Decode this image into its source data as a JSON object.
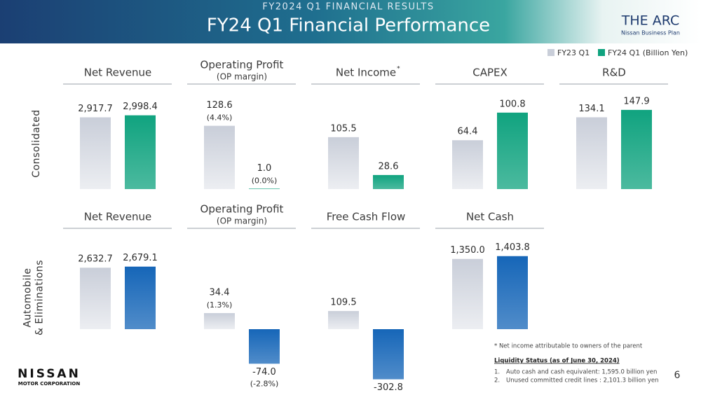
{
  "header": {
    "subtitle": "FY2024 Q1 FINANCIAL RESULTS",
    "title": "FY24 Q1 Financial Performance",
    "logo": "THE ARC",
    "logo_sub": "Nissan Business Plan"
  },
  "legend": [
    {
      "name": "FY23 Q1",
      "color": "#c9ced9"
    },
    {
      "name": "FY24 Q1 (Billion Yen)",
      "color": "#10a37f"
    }
  ],
  "rows": [
    {
      "label_lines": [
        "Consolidated"
      ]
    },
    {
      "label_lines": [
        "Automobile",
        "& Eliminations"
      ]
    }
  ],
  "chart_data": [
    {
      "type": "bar",
      "title": "Net Revenue",
      "values": [
        2917.7,
        2998.4
      ],
      "value_labels": [
        "2,917.7",
        "2,998.4"
      ],
      "colors": [
        "#c9ced9",
        "#10a37f"
      ],
      "ylim": [
        0,
        3700
      ]
    },
    {
      "type": "bar",
      "title": "Operating Profit",
      "subtitle": "(OP margin)",
      "values": [
        128.6,
        1.0
      ],
      "value_labels": [
        "128.6",
        "1.0"
      ],
      "margin_labels": [
        "(4.4%)",
        "(0.0%)"
      ],
      "colors": [
        "#c9ced9",
        "#10a37f"
      ],
      "ylim": [
        0,
        185
      ]
    },
    {
      "type": "bar",
      "title": "Net Income",
      "title_mark": "*",
      "values": [
        105.5,
        28.6
      ],
      "value_labels": [
        "105.5",
        "28.6"
      ],
      "colors": [
        "#c9ced9",
        "#10a37f"
      ],
      "ylim": [
        0,
        185
      ]
    },
    {
      "type": "bar",
      "title": "CAPEX",
      "values": [
        64.4,
        100.8
      ],
      "value_labels": [
        "64.4",
        "100.8"
      ],
      "colors": [
        "#c9ced9",
        "#10a37f"
      ],
      "ylim": [
        0,
        120
      ]
    },
    {
      "type": "bar",
      "title": "R&D",
      "values": [
        134.1,
        147.9
      ],
      "value_labels": [
        "134.1",
        "147.9"
      ],
      "colors": [
        "#c9ced9",
        "#10a37f"
      ],
      "ylim": [
        0,
        170
      ]
    },
    {
      "type": "bar",
      "title": "Net Revenue",
      "values": [
        2632.7,
        2679.1
      ],
      "value_labels": [
        "2,632.7",
        "2,679.1"
      ],
      "colors": [
        "#c9ced9",
        "#1666b8"
      ],
      "ylim": [
        0,
        3900
      ]
    },
    {
      "type": "bar",
      "title": "Operating Profit",
      "subtitle": "(OP margin)",
      "values": [
        34.4,
        -74.0
      ],
      "value_labels": [
        "34.4",
        "-74.0"
      ],
      "margin_labels": [
        "(1.3%)",
        "(-2.8%)"
      ],
      "colors": [
        "#c9ced9",
        "#1666b8"
      ],
      "ylim": [
        -80,
        195
      ]
    },
    {
      "type": "bar",
      "title": "Free Cash Flow",
      "values": [
        109.5,
        -302.8
      ],
      "value_labels": [
        "109.5",
        "-302.8"
      ],
      "colors": [
        "#c9ced9",
        "#1666b8"
      ],
      "ylim": [
        -310,
        550
      ]
    },
    {
      "type": "bar",
      "title": "Net Cash",
      "values": [
        1350.0,
        1403.8
      ],
      "value_labels": [
        "1,350.0",
        "1,403.8"
      ],
      "colors": [
        "#c9ced9",
        "#1666b8"
      ],
      "ylim": [
        0,
        1750
      ]
    }
  ],
  "notes": {
    "footnote": "* Net income attributable to owners of the parent",
    "liquidity_title": "Liquidity Status (as of June 30, 2024)",
    "items": [
      {
        "num": "1.",
        "text": "Auto cash and cash equivalent: 1,595.0 billion yen"
      },
      {
        "num": "2.",
        "text": "Unused committed credit lines : 2,101.3 billion yen"
      }
    ]
  },
  "footer": {
    "brand": "NISSAN",
    "brand_sub": "MOTOR CORPORATION",
    "page": "6"
  }
}
